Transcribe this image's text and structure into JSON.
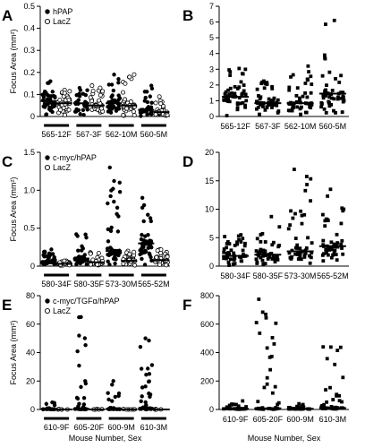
{
  "chart_data": [
    {
      "panel": "A",
      "type": "scatter",
      "paired": true,
      "ylabel": "Focus Area (mm²)",
      "ylim": [
        0,
        0.5
      ],
      "yticks": [
        "0",
        "0.1",
        "0.2",
        "0.3",
        "0.4",
        "0.5"
      ],
      "ytick_values": [
        0,
        0.1,
        0.2,
        0.3,
        0.4,
        0.5
      ],
      "categories": [
        "565-12F",
        "567-3F",
        "562-10M",
        "560-5M"
      ],
      "legend": [
        {
          "label": "hPAP",
          "marker": "filled-circle"
        },
        {
          "label": "LacZ",
          "marker": "open-circle"
        }
      ],
      "series": [
        {
          "name": "hPAP",
          "marker": "filled-circle",
          "points_per_group": [
            45,
            34,
            42,
            38
          ],
          "medians": [
            0.07,
            0.06,
            0.06,
            0.03
          ],
          "maxima": [
            0.16,
            0.13,
            0.19,
            0.14
          ]
        },
        {
          "name": "LacZ",
          "marker": "open-circle",
          "points_per_group": [
            45,
            42,
            38,
            35
          ],
          "medians": [
            0.06,
            0.05,
            0.05,
            0.02
          ],
          "maxima": [
            0.12,
            0.14,
            0.19,
            0.09
          ]
        }
      ]
    },
    {
      "panel": "B",
      "type": "scatter",
      "ylabel": "",
      "ylim": [
        0,
        7
      ],
      "yticks": [
        "0",
        "1",
        "2",
        "3",
        "4",
        "5",
        "6",
        "7"
      ],
      "ytick_values": [
        0,
        1,
        2,
        3,
        4,
        5,
        6,
        7
      ],
      "categories": [
        "565-12F",
        "567-3F",
        "562-10M",
        "560-5M"
      ],
      "series": [
        {
          "marker": "filled-square",
          "points_per_group": [
            48,
            48,
            48,
            48
          ],
          "medians": [
            1.25,
            0.85,
            0.85,
            1.45
          ],
          "maxima": [
            3.05,
            2.25,
            3.2,
            6.1
          ]
        }
      ]
    },
    {
      "panel": "C",
      "type": "scatter",
      "paired": true,
      "ylabel": "Focus Area (mm²)",
      "ylim": [
        0,
        1.5
      ],
      "yticks": [
        "0",
        "0.5",
        "1.0",
        "1.5"
      ],
      "ytick_values": [
        0,
        0.5,
        1.0,
        1.5
      ],
      "categories": [
        "580-34F",
        "580-35F",
        "573-30M",
        "565-52M"
      ],
      "legend": [
        {
          "label": "c-myc/hPAP",
          "marker": "filled-circle"
        },
        {
          "label": "LacZ",
          "marker": "open-circle"
        }
      ],
      "series": [
        {
          "name": "c-myc/hPAP",
          "marker": "filled-circle",
          "points_per_group": [
            40,
            44,
            48,
            48
          ],
          "medians": [
            0.06,
            0.1,
            0.2,
            0.3
          ],
          "maxima": [
            0.22,
            0.42,
            1.3,
            0.9
          ]
        },
        {
          "name": "LacZ",
          "marker": "open-circle",
          "points_per_group": [
            30,
            32,
            32,
            32
          ],
          "medians": [
            0.03,
            0.05,
            0.07,
            0.08
          ],
          "maxima": [
            0.07,
            0.18,
            0.2,
            0.22
          ]
        }
      ]
    },
    {
      "panel": "D",
      "type": "scatter",
      "ylabel": "",
      "ylim": [
        0,
        20
      ],
      "yticks": [
        "0",
        "5",
        "10",
        "15",
        "20"
      ],
      "ytick_values": [
        0,
        5,
        10,
        15,
        20
      ],
      "categories": [
        "580-34F",
        "580-35F",
        "573-30M",
        "565-52M"
      ],
      "series": [
        {
          "marker": "filled-square",
          "points_per_group": [
            48,
            48,
            48,
            48
          ],
          "medians": [
            1.8,
            2.0,
            2.6,
            3.5
          ],
          "maxima": [
            5.5,
            8.7,
            17,
            13.5
          ]
        }
      ]
    },
    {
      "panel": "E",
      "type": "scatter",
      "paired": true,
      "ylabel": "Focus Area (mm²)",
      "xlabel": "Mouse Number, Sex",
      "ylim": [
        0,
        80
      ],
      "yticks": [
        "0",
        "20",
        "40",
        "60",
        "80"
      ],
      "ytick_values": [
        0,
        20,
        40,
        60,
        80
      ],
      "categories": [
        "610-9F",
        "605-20F",
        "600-9M",
        "610-3M"
      ],
      "legend": [
        {
          "label": "c-myc/TGFα/hPAP",
          "marker": "filled-circle"
        },
        {
          "label": "LacZ",
          "marker": "open-circle"
        }
      ],
      "series": [
        {
          "name": "c-myc/TGFα/hPAP",
          "marker": "filled-circle",
          "points_per_group": [
            20,
            30,
            22,
            40
          ],
          "medians": [
            0.3,
            0.5,
            0.4,
            0.8
          ],
          "maxima": [
            5,
            65,
            20,
            50
          ]
        },
        {
          "name": "LacZ",
          "marker": "open-circle",
          "points_per_group": [
            6,
            6,
            6,
            6
          ],
          "medians": [
            0,
            0,
            0,
            0
          ],
          "maxima": [
            0.3,
            0.3,
            0.3,
            0.3
          ]
        }
      ]
    },
    {
      "panel": "F",
      "type": "scatter",
      "ylabel": "",
      "xlabel": "Mouse Number, Sex",
      "ylim": [
        0,
        800
      ],
      "yticks": [
        "0",
        "200",
        "400",
        "600",
        "800"
      ],
      "ytick_values": [
        0,
        200,
        400,
        600,
        800
      ],
      "categories": [
        "610-9F",
        "605-20F",
        "600-9M",
        "610-3M"
      ],
      "series": [
        {
          "marker": "filled-square",
          "points_per_group": [
            30,
            40,
            30,
            45
          ],
          "medians": [
            5,
            8,
            5,
            10
          ],
          "maxima": [
            60,
            775,
            40,
            440
          ]
        }
      ]
    }
  ]
}
